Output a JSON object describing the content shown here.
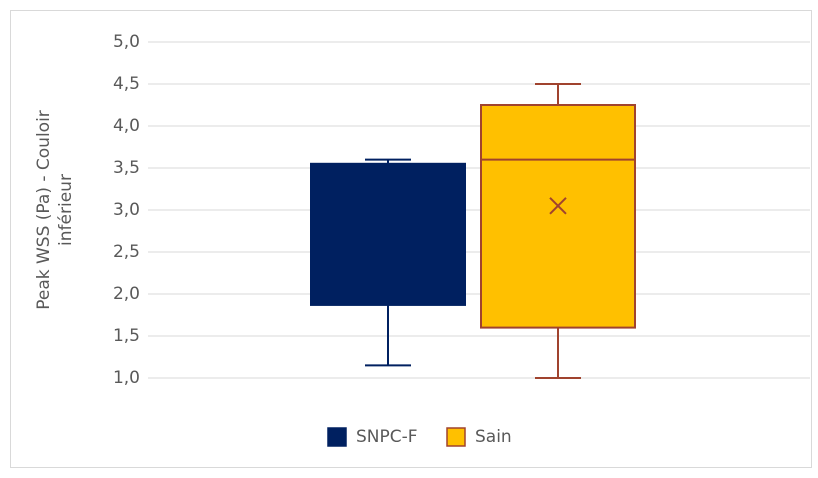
{
  "chart_data": {
    "type": "box",
    "y_label": [
      "Peak WSS (Pa) - Couloir",
      "inférieur"
    ],
    "ylim": [
      1.0,
      5.0
    ],
    "yticks": [
      {
        "value": 1.0,
        "label": "1,0"
      },
      {
        "value": 1.5,
        "label": "1,5"
      },
      {
        "value": 2.0,
        "label": "2,0"
      },
      {
        "value": 2.5,
        "label": "2,5"
      },
      {
        "value": 3.0,
        "label": "3,0"
      },
      {
        "value": 3.5,
        "label": "3,5"
      },
      {
        "value": 4.0,
        "label": "4,0"
      },
      {
        "value": 4.5,
        "label": "4,5"
      },
      {
        "value": 5.0,
        "label": "5,0"
      }
    ],
    "grid": true,
    "legend": "bottom",
    "series": [
      {
        "name": "SNPC-F",
        "color": "#002060",
        "edge": "#002060",
        "min": 1.15,
        "q1": 1.87,
        "q3": 3.55,
        "max": 3.6
      },
      {
        "name": "Sain",
        "color": "#ffc000",
        "edge": "#a0432e",
        "min": 1.0,
        "q1": 1.6,
        "median": 3.6,
        "q3": 4.25,
        "max": 4.5,
        "mean": 3.05
      }
    ]
  }
}
